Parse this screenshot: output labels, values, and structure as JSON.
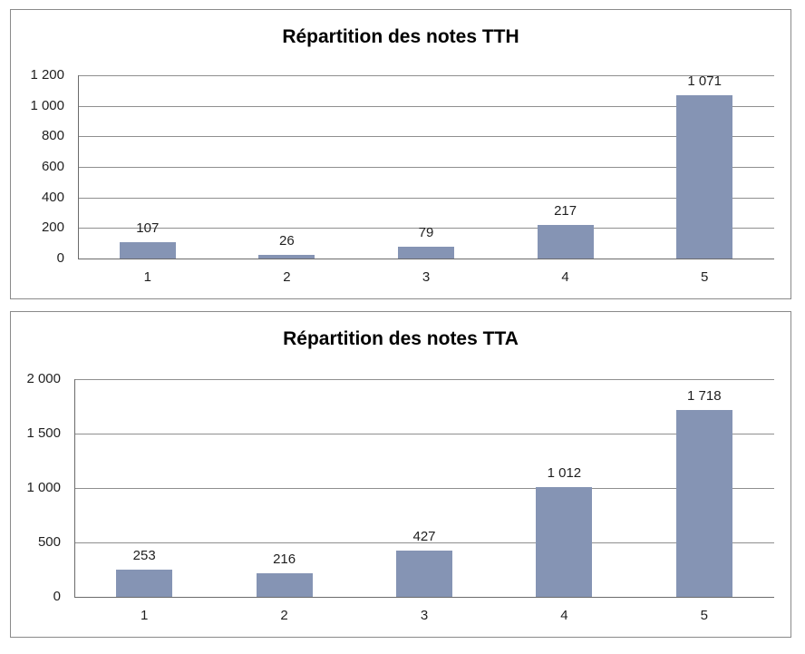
{
  "style": {
    "background": "#FFFFFF",
    "bar_color": "#8594B4",
    "gridline_color": "#8F8F8F",
    "axis_color": "#6B6B6B",
    "panel_border_color": "#8A8A8A",
    "text_color": "#1F1F1F",
    "title_color": "#000000"
  },
  "chart_data": [
    {
      "type": "bar",
      "title": "Répartition des notes TTH",
      "categories": [
        "1",
        "2",
        "3",
        "4",
        "5"
      ],
      "values": [
        107,
        26,
        79,
        217,
        1071
      ],
      "data_labels": [
        "107",
        "26",
        "79",
        "217",
        "1 071"
      ],
      "xlabel": "",
      "ylabel": "",
      "ylim": [
        0,
        1200
      ],
      "ytick_interval": 200,
      "yticks": [
        {
          "value": 1200,
          "label": "1 200"
        },
        {
          "value": 1000,
          "label": "1 000"
        },
        {
          "value": 800,
          "label": "800"
        },
        {
          "value": 600,
          "label": "600"
        },
        {
          "value": 400,
          "label": "400"
        },
        {
          "value": 200,
          "label": "200"
        },
        {
          "value": 0,
          "label": "0"
        }
      ],
      "legend": "none",
      "grid": "horizontal-major"
    },
    {
      "type": "bar",
      "title": "Répartition des notes TTA",
      "categories": [
        "1",
        "2",
        "3",
        "4",
        "5"
      ],
      "values": [
        253,
        216,
        427,
        1012,
        1718
      ],
      "data_labels": [
        "253",
        "216",
        "427",
        "1 012",
        "1 718"
      ],
      "xlabel": "",
      "ylabel": "",
      "ylim": [
        0,
        2000
      ],
      "ytick_interval": 500,
      "yticks": [
        {
          "value": 2000,
          "label": "2 000"
        },
        {
          "value": 1500,
          "label": "1 500"
        },
        {
          "value": 1000,
          "label": "1 000"
        },
        {
          "value": 500,
          "label": "500"
        },
        {
          "value": 0,
          "label": "0"
        }
      ],
      "legend": "none",
      "grid": "horizontal-major"
    }
  ]
}
